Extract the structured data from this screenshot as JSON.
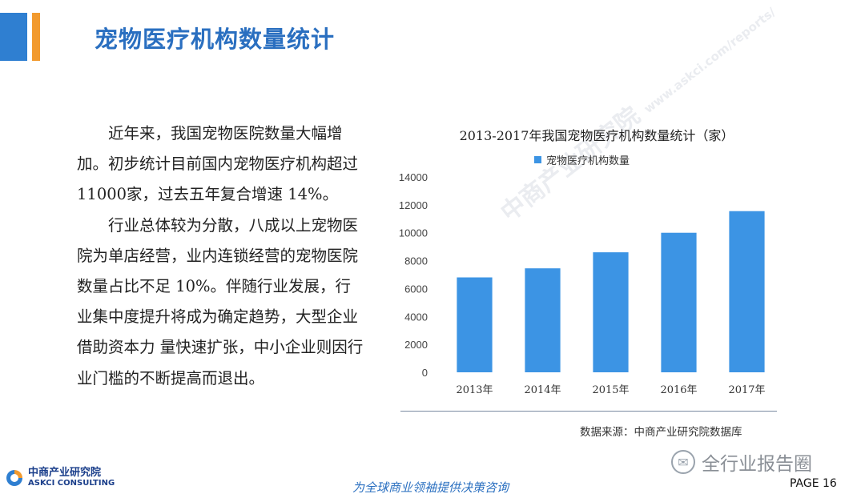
{
  "header": {
    "title": "宠物医疗机构数量统计"
  },
  "body": {
    "paragraphs": [
      "近年来，我国宠物医院数量大幅增加。初步统计目前国内宠物医疗机构超过11000家，过去五年复合增速 14%。",
      "行业总体较为分散，八成以上宠物医院为单店经营，业内连锁经营的宠物医院数量占比不足 10%。伴随行业发展，行业集中度提升将成为确定趋势，大型企业借助资本力 量快速扩张，中小企业则因行业门槛的不断提高而退出。"
    ]
  },
  "chart_data": {
    "type": "bar",
    "title": "2013-2017年我国宠物医疗机构数量统计（家）",
    "categories": [
      "2013年",
      "2014年",
      "2015年",
      "2016年",
      "2017年"
    ],
    "series": [
      {
        "name": "宠物医疗机构数量",
        "values": [
          6800,
          7450,
          8600,
          10000,
          11550
        ],
        "color": "#3c94e4"
      }
    ],
    "yticks": [
      "0",
      "2000",
      "4000",
      "6000",
      "8000",
      "10000",
      "12000",
      "14000"
    ],
    "ylim": [
      0,
      14000
    ],
    "grid": false,
    "legend": "top",
    "source": "数据来源：中商产业研究院数据库"
  },
  "watermark": {
    "text": "中商产业研究院",
    "url": "www.askci.com/reports/"
  },
  "wechat": {
    "label": "全行业报告圈",
    "icon": "wechat-icon"
  },
  "logo": {
    "name_cn": "中商产业研究院",
    "name_en": "ASKCI CONSULTING"
  },
  "footer": {
    "slogan": "为全球商业领袖提供决策咨询",
    "page": "PAGE  16"
  },
  "colors": {
    "accent_blue": "#2f7fd1",
    "accent_orange": "#f29a2e",
    "title": "#2a6fc0",
    "bar": "#3c94e4"
  }
}
